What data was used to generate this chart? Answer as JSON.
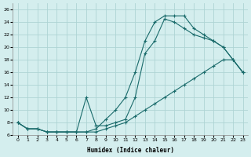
{
  "xlabel": "Humidex (Indice chaleur)",
  "background_color": "#d4eeee",
  "grid_color": "#aed4d4",
  "line_color": "#1a6b6b",
  "xlim": [
    -0.5,
    23.5
  ],
  "ylim": [
    6,
    27
  ],
  "xticks": [
    0,
    1,
    2,
    3,
    4,
    5,
    6,
    7,
    8,
    9,
    10,
    11,
    12,
    13,
    14,
    15,
    16,
    17,
    18,
    19,
    20,
    21,
    22,
    23
  ],
  "yticks": [
    6,
    8,
    10,
    12,
    14,
    16,
    18,
    20,
    22,
    24,
    26
  ],
  "line1_x": [
    0,
    1,
    2,
    3,
    4,
    5,
    6,
    7,
    8,
    9,
    10,
    11,
    12,
    13,
    14,
    15,
    16,
    17,
    18,
    19,
    20,
    21,
    22,
    23
  ],
  "line1_y": [
    8,
    7,
    7,
    6.5,
    6.5,
    6.5,
    6.5,
    6.5,
    7,
    8.5,
    10,
    12,
    16,
    21,
    24,
    25,
    25,
    25,
    23,
    22,
    21,
    20,
    18,
    16
  ],
  "line2_x": [
    0,
    1,
    2,
    3,
    4,
    5,
    6,
    7,
    8,
    9,
    10,
    11,
    12,
    13,
    14,
    15,
    16,
    17,
    18,
    19,
    20,
    21,
    22,
    23
  ],
  "line2_y": [
    8,
    7,
    7,
    6.5,
    6.5,
    6.5,
    6.5,
    12,
    7.5,
    7.5,
    8,
    8.5,
    12,
    19,
    21,
    24.5,
    24,
    23,
    22,
    21.5,
    21,
    20,
    18,
    16
  ],
  "line3_x": [
    0,
    1,
    2,
    3,
    4,
    5,
    6,
    7,
    8,
    9,
    10,
    11,
    12,
    13,
    14,
    15,
    16,
    17,
    18,
    19,
    20,
    21,
    22,
    23
  ],
  "line3_y": [
    8,
    7,
    7,
    6.5,
    6.5,
    6.5,
    6.5,
    6.5,
    6.5,
    7,
    7.5,
    8,
    9,
    10,
    11,
    12,
    13,
    14,
    15,
    16,
    17,
    18,
    18,
    16
  ]
}
